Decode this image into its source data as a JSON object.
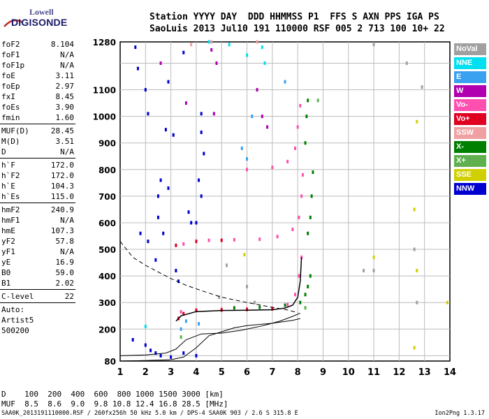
{
  "logo": {
    "line1": "Lowell",
    "line2": "DIGISONDE"
  },
  "header": {
    "line1": "Station YYYY DAY  DDD HHMMSS P1  FFS S AXN PPS IGA PS",
    "line2": "SaoLuis 2013 Jul10 191 110000 RSF 005 2 713 100 10+ 22"
  },
  "params": {
    "group1": [
      {
        "label": "foF2",
        "value": "8.104"
      },
      {
        "label": "foF1",
        "value": "N/A"
      },
      {
        "label": "foF1p",
        "value": "N/A"
      },
      {
        "label": "foE",
        "value": "3.11"
      },
      {
        "label": "foEp",
        "value": "2.97"
      },
      {
        "label": "fxI",
        "value": "8.45"
      },
      {
        "label": "foEs",
        "value": "3.90"
      },
      {
        "label": "fmin",
        "value": "1.60"
      }
    ],
    "group2": [
      {
        "label": "MUF(D)",
        "value": "28.45"
      },
      {
        "label": "M(D)",
        "value": "3.51"
      },
      {
        "label": "D",
        "value": "N/A"
      }
    ],
    "group3": [
      {
        "label": "h`F",
        "value": "172.0"
      },
      {
        "label": "h`F2",
        "value": "172.0"
      },
      {
        "label": "h`E",
        "value": "104.3"
      },
      {
        "label": "h`Es",
        "value": "115.0"
      }
    ],
    "group4": [
      {
        "label": "hmF2",
        "value": "240.9"
      },
      {
        "label": "hmF1",
        "value": "N/A"
      },
      {
        "label": "hmE",
        "value": "107.3"
      },
      {
        "label": "yF2",
        "value": "57.8"
      },
      {
        "label": "yF1",
        "value": "N/A"
      },
      {
        "label": "yE",
        "value": "16.9"
      },
      {
        "label": "B0",
        "value": "59.0"
      },
      {
        "label": "B1",
        "value": "2.02"
      }
    ],
    "group5": [
      {
        "label": "C-level",
        "value": "22"
      }
    ],
    "auto": [
      "Auto:",
      "Artist5",
      "500200"
    ]
  },
  "legend": [
    {
      "label": "NoVal",
      "color": "#a0a0a0"
    },
    {
      "label": "NNE",
      "color": "#00e0f0"
    },
    {
      "label": "E",
      "color": "#3aa0f0"
    },
    {
      "label": "W",
      "color": "#b000b0"
    },
    {
      "label": "Vo-",
      "color": "#ff50b0"
    },
    {
      "label": "Vo+",
      "color": "#e00020"
    },
    {
      "label": "SSW",
      "color": "#f0a0a0"
    },
    {
      "label": "X-",
      "color": "#008000"
    },
    {
      "label": "X+",
      "color": "#60b050"
    },
    {
      "label": "SSE",
      "color": "#d0d000"
    },
    {
      "label": "NNW",
      "color": "#0000d0"
    }
  ],
  "chart_data": {
    "type": "scatter",
    "xlabel": "",
    "ylabel": "",
    "xlim": [
      1,
      14
    ],
    "ylim": [
      80,
      1280
    ],
    "x_ticks": [
      1,
      2,
      3,
      4,
      5,
      6,
      7,
      8,
      9,
      10,
      11,
      12,
      13,
      14
    ],
    "y_ticks": [
      80,
      200,
      300,
      400,
      500,
      600,
      700,
      800,
      900,
      1000,
      1100,
      1280
    ],
    "grid": true,
    "series": [
      {
        "name": "Vo-",
        "color": "#ff50b0",
        "points": [
          [
            3.4,
            265
          ],
          [
            4,
            272
          ],
          [
            5,
            274
          ],
          [
            6,
            275
          ],
          [
            7,
            278
          ],
          [
            7.6,
            292
          ],
          [
            7.9,
            330
          ],
          [
            8.05,
            400
          ],
          [
            8.15,
            470
          ],
          [
            3.5,
            520
          ],
          [
            4.5,
            534
          ],
          [
            5.5,
            536
          ],
          [
            6.5,
            538
          ],
          [
            7.2,
            548
          ],
          [
            7.8,
            575
          ],
          [
            8.05,
            620
          ],
          [
            8.15,
            700
          ],
          [
            8.2,
            780
          ],
          [
            6,
            800
          ],
          [
            7,
            808
          ],
          [
            7.6,
            830
          ],
          [
            7.9,
            880
          ],
          [
            8.0,
            960
          ],
          [
            8.1,
            1040
          ]
        ]
      },
      {
        "name": "Vo+",
        "color": "#e00020",
        "points": [
          [
            3.3,
            240
          ],
          [
            3.5,
            258
          ],
          [
            4,
            270
          ],
          [
            5,
            272
          ],
          [
            6,
            274
          ],
          [
            7,
            276
          ],
          [
            3.2,
            515
          ],
          [
            4,
            530
          ],
          [
            5,
            534
          ]
        ]
      },
      {
        "name": "X-",
        "color": "#008000",
        "points": [
          [
            5.5,
            280
          ],
          [
            6.5,
            282
          ],
          [
            7.5,
            290
          ],
          [
            8.1,
            300
          ],
          [
            8.3,
            330
          ],
          [
            8.4,
            360
          ],
          [
            8.5,
            400
          ],
          [
            8.4,
            560
          ],
          [
            8.5,
            620
          ],
          [
            8.55,
            700
          ],
          [
            8.6,
            790
          ],
          [
            8.3,
            900
          ],
          [
            8.35,
            1000
          ],
          [
            8.4,
            1060
          ]
        ]
      },
      {
        "name": "NNW",
        "color": "#0000d0",
        "points": [
          [
            1.6,
            1260
          ],
          [
            1.7,
            1180
          ],
          [
            2.0,
            1100
          ],
          [
            2.1,
            1010
          ],
          [
            2.8,
            950
          ],
          [
            3.1,
            930
          ],
          [
            4.2,
            940
          ],
          [
            4.3,
            860
          ],
          [
            4.1,
            760
          ],
          [
            4.2,
            700
          ],
          [
            4.0,
            600
          ],
          [
            2.5,
            620
          ],
          [
            2.7,
            560
          ],
          [
            3.2,
            420
          ],
          [
            3.3,
            380
          ],
          [
            1.5,
            160
          ],
          [
            2.0,
            140
          ],
          [
            2.2,
            120
          ],
          [
            2.4,
            110
          ],
          [
            2.6,
            100
          ],
          [
            3,
            95
          ],
          [
            3.5,
            110
          ],
          [
            4,
            100
          ],
          [
            2.5,
            700
          ],
          [
            2.6,
            760
          ],
          [
            2.9,
            730
          ],
          [
            3.7,
            640
          ],
          [
            3.8,
            600
          ],
          [
            2.9,
            1130
          ],
          [
            4.2,
            1010
          ],
          [
            3.5,
            1240
          ],
          [
            1.8,
            560
          ],
          [
            2.1,
            530
          ],
          [
            2.4,
            460
          ]
        ]
      },
      {
        "name": "E",
        "color": "#3aa0f0",
        "points": [
          [
            3.4,
            200
          ],
          [
            3.6,
            230
          ],
          [
            4.1,
            220
          ],
          [
            5.8,
            880
          ],
          [
            6.0,
            840
          ],
          [
            6.2,
            1000
          ],
          [
            7.5,
            1130
          ]
        ]
      },
      {
        "name": "X+",
        "color": "#60b050",
        "points": [
          [
            8.8,
            1060
          ],
          [
            8.3,
            280
          ],
          [
            3.4,
            170
          ]
        ]
      },
      {
        "name": "SSE",
        "color": "#d0d000",
        "points": [
          [
            12.7,
            980
          ],
          [
            12.6,
            650
          ],
          [
            12.7,
            420
          ],
          [
            11.0,
            470
          ],
          [
            12.6,
            130
          ],
          [
            13.9,
            300
          ],
          [
            5.9,
            480
          ]
        ]
      },
      {
        "name": "NoVal",
        "color": "#a0a0a0",
        "points": [
          [
            10.6,
            420
          ],
          [
            11.0,
            420
          ],
          [
            12.6,
            500
          ],
          [
            12.7,
            300
          ],
          [
            6.0,
            360
          ],
          [
            6.3,
            300
          ],
          [
            4.9,
            320
          ],
          [
            5.2,
            440
          ],
          [
            11,
            1270
          ],
          [
            12.3,
            1200
          ],
          [
            12.9,
            1110
          ]
        ]
      },
      {
        "name": "W",
        "color": "#b000b0",
        "points": [
          [
            2.6,
            1200
          ],
          [
            4.6,
            1250
          ],
          [
            4.8,
            1200
          ],
          [
            6.4,
            1100
          ],
          [
            6.6,
            1000
          ],
          [
            6.8,
            960
          ],
          [
            3.6,
            1050
          ],
          [
            4.7,
            1010
          ]
        ]
      },
      {
        "name": "NNE",
        "color": "#00e0f0",
        "points": [
          [
            4.5,
            1280
          ],
          [
            5.3,
            1270
          ],
          [
            6.6,
            1260
          ],
          [
            6.7,
            1200
          ],
          [
            2.0,
            210
          ],
          [
            6.0,
            1230
          ]
        ]
      },
      {
        "name": "SSW",
        "color": "#f0a0a0",
        "points": [
          [
            4.6,
            1280
          ],
          [
            6.4,
            1280
          ],
          [
            3.8,
            1270
          ]
        ]
      }
    ],
    "trace_solid": [
      [
        1.0,
        80
      ],
      [
        2,
        82
      ],
      [
        3,
        85
      ],
      [
        3.5,
        95
      ],
      [
        4,
        130
      ],
      [
        4.5,
        175
      ],
      [
        5,
        190
      ],
      [
        5.5,
        205
      ],
      [
        6,
        213
      ],
      [
        7,
        222
      ],
      [
        7.8,
        233
      ],
      [
        8.1,
        240
      ]
    ],
    "trace_profile": [
      [
        1.0,
        100
      ],
      [
        2,
        103
      ],
      [
        2.8,
        110
      ],
      [
        3.2,
        125
      ],
      [
        3.6,
        160
      ],
      [
        4.2,
        182
      ],
      [
        5,
        185
      ],
      [
        5.8,
        196
      ],
      [
        6.6,
        212
      ],
      [
        7.3,
        230
      ],
      [
        7.8,
        248
      ],
      [
        8.1,
        260
      ]
    ],
    "trace_dashed": [
      [
        1.0,
        530
      ],
      [
        1.5,
        470
      ],
      [
        2,
        440
      ],
      [
        2.6,
        410
      ],
      [
        3,
        390
      ],
      [
        3.6,
        365
      ],
      [
        4.2,
        345
      ],
      [
        5,
        320
      ],
      [
        6,
        300
      ],
      [
        7,
        282
      ],
      [
        7.6,
        272
      ],
      [
        8.0,
        262
      ]
    ],
    "trace_virtual": [
      [
        3.2,
        230
      ],
      [
        3.4,
        250
      ],
      [
        4,
        266
      ],
      [
        5,
        270
      ],
      [
        6,
        271
      ],
      [
        7,
        273
      ],
      [
        7.5,
        279
      ],
      [
        7.8,
        290
      ],
      [
        8.0,
        320
      ],
      [
        8.1,
        380
      ],
      [
        8.15,
        470
      ]
    ]
  },
  "dtable": {
    "row1": "D    100  200  400  600  800 1000 1500 3000 [km]",
    "row2": "MUF  8.5  8.6  9.0  9.8 10.8 12.4 16.8 28.5 [MHz]"
  },
  "footer": {
    "left": "SAA0K_2013191110000.RSF / 260fx256h 50 kHz 5.0 km / DPS-4 SAA0K 903 / 2.6 S 315.8 E",
    "right": "Ion2Png 1.3.17"
  }
}
